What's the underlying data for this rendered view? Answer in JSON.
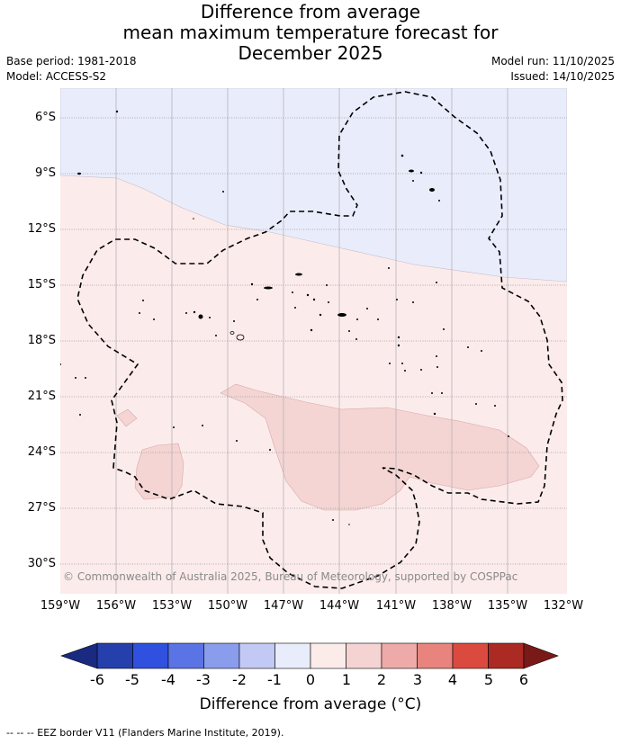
{
  "title": {
    "line1": "Difference from average",
    "line2": "mean maximum temperature forecast for",
    "line3": "December 2025"
  },
  "meta_left": {
    "base_period": "Base period: 1981-2018",
    "model": "Model: ACCESS-S2"
  },
  "meta_right": {
    "model_run": "Model run: 11/10/2025",
    "issued": "Issued: 14/10/2025"
  },
  "map": {
    "latitude_labels": [
      "6°S",
      "9°S",
      "12°S",
      "15°S",
      "18°S",
      "21°S",
      "24°S",
      "27°S",
      "30°S"
    ],
    "longitude_labels": [
      "159°W",
      "156°W",
      "153°W",
      "150°W",
      "147°W",
      "144°W",
      "141°W",
      "138°W",
      "135°W",
      "132°W"
    ],
    "copyright": "© Commonwealth of Australia 2025, Bureau of Meteorology, supported by COSPPac",
    "anomaly_regions": [
      {
        "name": "north",
        "range": "-1 to 0",
        "color": "#e9edfb"
      },
      {
        "name": "south",
        "range": "0 to 1",
        "color": "#fbeceb"
      },
      {
        "name": "central-patches",
        "range": "1 to 2",
        "color": "#f4d5d4"
      }
    ]
  },
  "colorbar": {
    "ticks": [
      "-6",
      "-5",
      "-4",
      "-3",
      "-2",
      "-1",
      "0",
      "1",
      "2",
      "3",
      "4",
      "5",
      "6"
    ],
    "colors": [
      "#253fad",
      "#3050e0",
      "#5a74e5",
      "#8a9cec",
      "#c2c9f4",
      "#e9ecfb",
      "#fbecea",
      "#f4d3d2",
      "#eeaaa9",
      "#e8847d",
      "#db4a3f",
      "#ac2a24"
    ],
    "under_color": "#1a2a80",
    "over_color": "#7a1a18",
    "title": "Difference from average (°C)"
  },
  "footnote": "--  --  -- EEZ border V11 (Flanders Marine Institute, 2019)."
}
